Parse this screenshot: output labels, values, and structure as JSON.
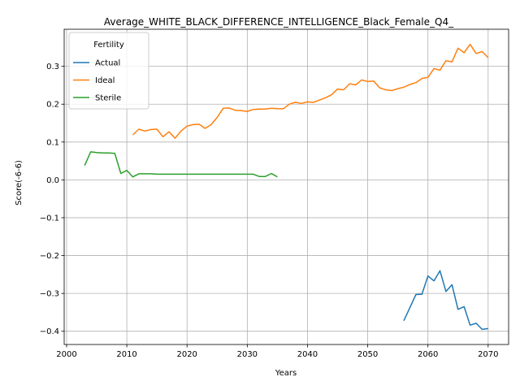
{
  "chart_data": {
    "type": "line",
    "title": "Average_WHITE_BLACK_DIFFERENCE_INTELLIGENCE_Black_Female_Q4_",
    "xlabel": "Years",
    "ylabel": "Score(-6-6)",
    "xlim": [
      1999.6,
      2073.4
    ],
    "ylim": [
      -0.435,
      0.398
    ],
    "xticks": [
      2000,
      2010,
      2020,
      2030,
      2040,
      2050,
      2060,
      2070
    ],
    "xtick_labels": [
      "2000",
      "2010",
      "2020",
      "2030",
      "2040",
      "2050",
      "2060",
      "2070"
    ],
    "yticks": [
      -0.4,
      -0.3,
      -0.2,
      -0.1,
      0.0,
      0.1,
      0.2,
      0.3
    ],
    "ytick_labels": [
      "−0.4",
      "−0.3",
      "−0.2",
      "−0.1",
      "0.0",
      "0.1",
      "0.2",
      "0.3"
    ],
    "grid": true,
    "legend": {
      "title": "Fertility",
      "position": "top-left"
    },
    "series": [
      {
        "name": "Actual",
        "color": "#1f77b4",
        "x": [
          2056,
          2057,
          2058,
          2059,
          2060,
          2061,
          2062,
          2063,
          2064,
          2065,
          2066,
          2067,
          2068,
          2069,
          2070
        ],
        "y": [
          -0.372,
          -0.338,
          -0.303,
          -0.302,
          -0.254,
          -0.267,
          -0.24,
          -0.295,
          -0.277,
          -0.342,
          -0.335,
          -0.384,
          -0.379,
          -0.395,
          -0.393
        ]
      },
      {
        "name": "Ideal",
        "color": "#ff7f0e",
        "x": [
          2011,
          2012,
          2013,
          2014,
          2015,
          2016,
          2017,
          2018,
          2019,
          2020,
          2021,
          2022,
          2023,
          2024,
          2025,
          2026,
          2027,
          2028,
          2029,
          2030,
          2031,
          2032,
          2033,
          2034,
          2035,
          2036,
          2037,
          2038,
          2039,
          2040,
          2041,
          2042,
          2043,
          2044,
          2045,
          2046,
          2047,
          2048,
          2049,
          2050,
          2051,
          2052,
          2053,
          2054,
          2055,
          2056,
          2057,
          2058,
          2059,
          2060,
          2061,
          2062,
          2063,
          2064,
          2065,
          2066,
          2067,
          2068,
          2069,
          2070
        ],
        "y": [
          0.119,
          0.134,
          0.129,
          0.133,
          0.134,
          0.114,
          0.127,
          0.11,
          0.129,
          0.142,
          0.146,
          0.147,
          0.136,
          0.146,
          0.165,
          0.189,
          0.19,
          0.184,
          0.183,
          0.181,
          0.186,
          0.187,
          0.187,
          0.189,
          0.188,
          0.188,
          0.2,
          0.205,
          0.202,
          0.206,
          0.205,
          0.211,
          0.217,
          0.225,
          0.24,
          0.238,
          0.254,
          0.251,
          0.264,
          0.26,
          0.261,
          0.243,
          0.238,
          0.236,
          0.241,
          0.245,
          0.252,
          0.257,
          0.268,
          0.271,
          0.294,
          0.29,
          0.315,
          0.312,
          0.348,
          0.336,
          0.358,
          0.334,
          0.339,
          0.323
        ]
      },
      {
        "name": "Sterile",
        "color": "#2ca02c",
        "x": [
          2003,
          2004,
          2005,
          2006,
          2007,
          2008,
          2009,
          2010,
          2011,
          2012,
          2013,
          2014,
          2015,
          2016,
          2017,
          2018,
          2019,
          2020,
          2021,
          2022,
          2023,
          2024,
          2025,
          2026,
          2027,
          2028,
          2029,
          2030,
          2031,
          2032,
          2033,
          2034,
          2035
        ],
        "y": [
          0.038,
          0.074,
          0.072,
          0.071,
          0.071,
          0.07,
          0.017,
          0.025,
          0.008,
          0.016,
          0.016,
          0.016,
          0.015,
          0.015,
          0.015,
          0.015,
          0.015,
          0.015,
          0.015,
          0.015,
          0.015,
          0.015,
          0.015,
          0.015,
          0.015,
          0.015,
          0.015,
          0.015,
          0.015,
          0.009,
          0.009,
          0.017,
          0.008
        ]
      }
    ]
  }
}
